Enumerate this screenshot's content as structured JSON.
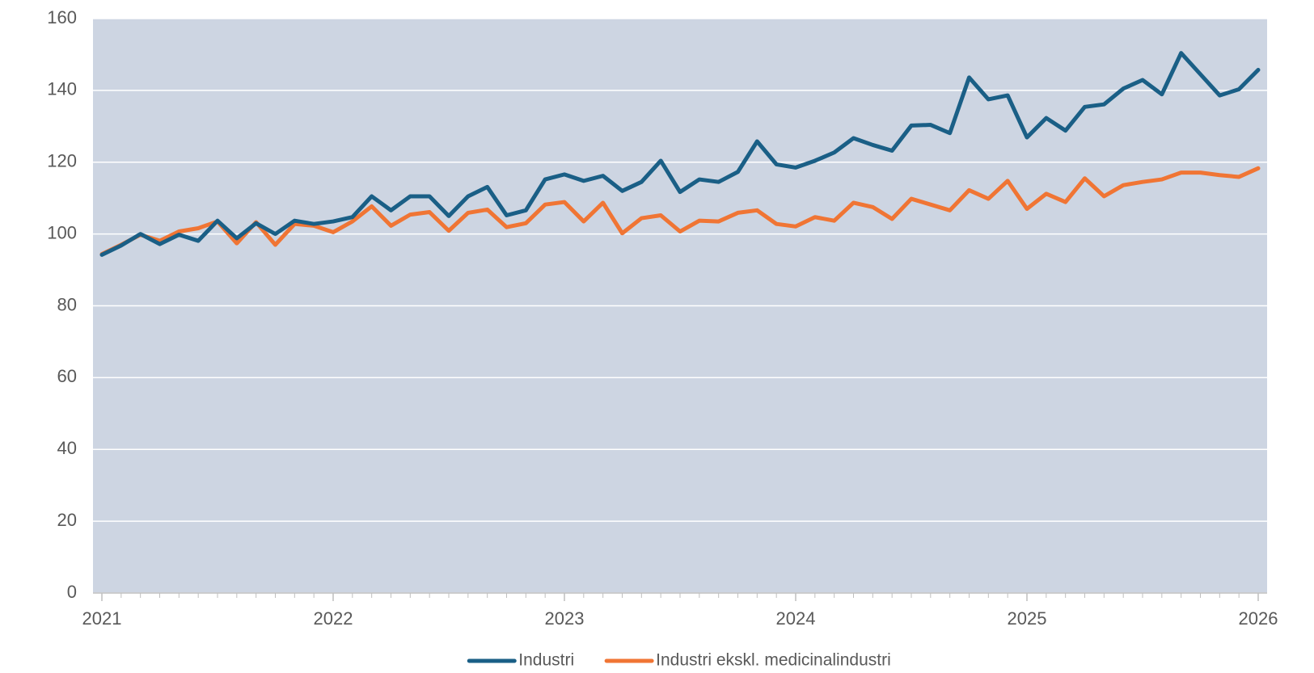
{
  "chart_data": {
    "type": "line",
    "x": [
      "2021-01",
      "2021-02",
      "2021-03",
      "2021-04",
      "2021-05",
      "2021-06",
      "2021-07",
      "2021-08",
      "2021-09",
      "2021-10",
      "2021-11",
      "2021-12",
      "2022-01",
      "2022-02",
      "2022-03",
      "2022-04",
      "2022-05",
      "2022-06",
      "2022-07",
      "2022-08",
      "2022-09",
      "2022-10",
      "2022-11",
      "2022-12",
      "2023-01",
      "2023-02",
      "2023-03",
      "2023-04",
      "2023-05",
      "2023-06",
      "2023-07",
      "2023-08",
      "2023-09",
      "2023-10",
      "2023-11",
      "2023-12",
      "2024-01",
      "2024-02",
      "2024-03",
      "2024-04",
      "2024-05",
      "2024-06",
      "2024-07",
      "2024-08",
      "2024-09",
      "2024-10",
      "2024-11",
      "2024-12",
      "2025-01",
      "2025-02",
      "2025-03",
      "2025-04",
      "2025-05",
      "2025-06",
      "2025-07",
      "2025-08",
      "2025-09",
      "2025-10",
      "2025-11",
      "2025-12",
      "2026-01"
    ],
    "series": [
      {
        "name": "Industri",
        "color": "#1a5f86",
        "values": [
          94.2,
          96.8,
          100,
          97.2,
          99.8,
          98.1,
          103.7,
          98.8,
          103,
          100,
          103.7,
          102.8,
          103.5,
          104.7,
          110.5,
          106.6,
          110.5,
          110.5,
          105,
          110.5,
          113.1,
          105.2,
          106.6,
          115.2,
          116.6,
          114.8,
          116.2,
          112,
          114.5,
          120.4,
          111.7,
          115.2,
          114.5,
          117.3,
          125.8,
          119.4,
          118.5,
          120.4,
          122.7,
          126.7,
          124.8,
          123.2,
          130.2,
          130.4,
          128.1,
          143.6,
          137.5,
          138.6,
          126.9,
          132.3,
          128.8,
          135.4,
          136.1,
          140.5,
          142.9,
          138.9,
          150.4,
          144.5,
          138.6,
          140.3,
          145.7
        ]
      },
      {
        "name": "Industri ekskl. medicinalindustri",
        "color": "#f07534",
        "values": [
          94.4,
          97,
          99.8,
          98.1,
          100.7,
          101.6,
          103.5,
          97.4,
          103.3,
          97,
          102.8,
          102.3,
          100.5,
          103.5,
          107.7,
          102.3,
          105.4,
          106.1,
          100.9,
          105.9,
          106.8,
          101.9,
          103,
          108.2,
          108.9,
          103.5,
          108.7,
          100.2,
          104.4,
          105.2,
          100.7,
          103.7,
          103.5,
          105.9,
          106.6,
          102.8,
          102.1,
          104.7,
          103.7,
          108.7,
          107.5,
          104.2,
          109.8,
          108.2,
          106.6,
          112.2,
          109.8,
          114.8,
          107,
          111.2,
          108.9,
          115.5,
          110.5,
          113.6,
          114.5,
          115.2,
          117.1,
          117.1,
          116.4,
          115.9,
          118.3
        ]
      }
    ],
    "xlim": [
      2021,
      2026
    ],
    "xticks": [
      2021,
      2022,
      2023,
      2024,
      2025,
      2026
    ],
    "ylim": [
      0,
      160
    ],
    "yticks": [
      0,
      20,
      40,
      60,
      80,
      100,
      120,
      140,
      160
    ],
    "grid": true,
    "legend": "bottom"
  }
}
